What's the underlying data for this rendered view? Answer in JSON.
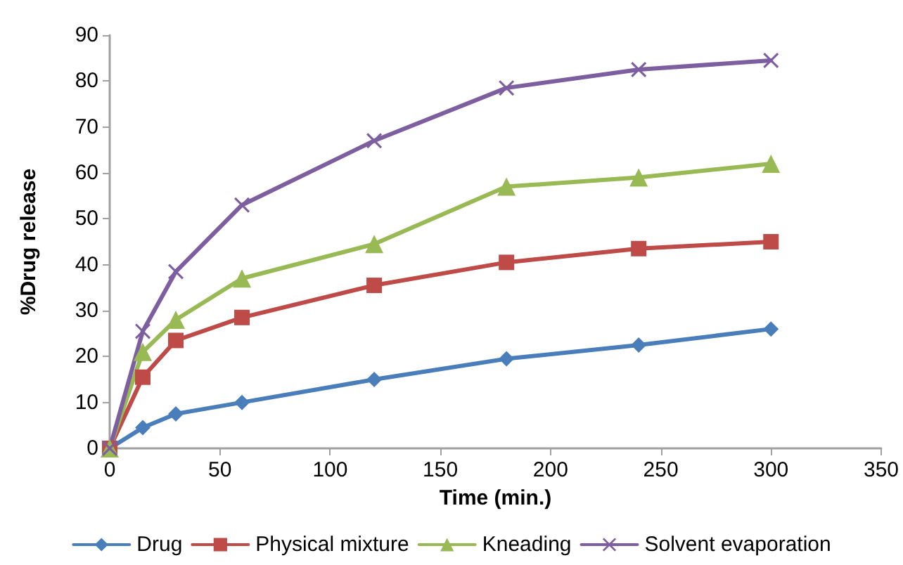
{
  "chart_data": {
    "type": "line",
    "xlabel": "Time (min.)",
    "ylabel": "%Drug release",
    "x": [
      0,
      15,
      30,
      60,
      120,
      180,
      240,
      300
    ],
    "series": [
      {
        "name": "Drug",
        "color": "#4a7ebb",
        "marker": "diamond",
        "values": [
          0,
          4.5,
          7.5,
          10,
          15,
          19.5,
          22.5,
          26
        ]
      },
      {
        "name": "Physical mixture",
        "color": "#be4b48",
        "marker": "square",
        "values": [
          0,
          15.5,
          23.5,
          28.5,
          35.5,
          40.5,
          43.5,
          45
        ]
      },
      {
        "name": "Kneading",
        "color": "#98b954",
        "marker": "triangle",
        "values": [
          0,
          21,
          28,
          37,
          44.5,
          57,
          59,
          62
        ]
      },
      {
        "name": "Solvent evaporation",
        "color": "#7d5fa0",
        "marker": "cross",
        "values": [
          0,
          25.5,
          38.5,
          53,
          67,
          78.5,
          82.5,
          84.5
        ]
      }
    ],
    "xlim": [
      0,
      350
    ],
    "xticks": [
      0,
      50,
      100,
      150,
      200,
      250,
      300,
      350
    ],
    "ylim": [
      0,
      90
    ],
    "yticks": [
      0,
      10,
      20,
      30,
      40,
      50,
      60,
      70,
      80,
      90
    ],
    "grid": false,
    "legend": "bottom",
    "line_style": "solid"
  }
}
